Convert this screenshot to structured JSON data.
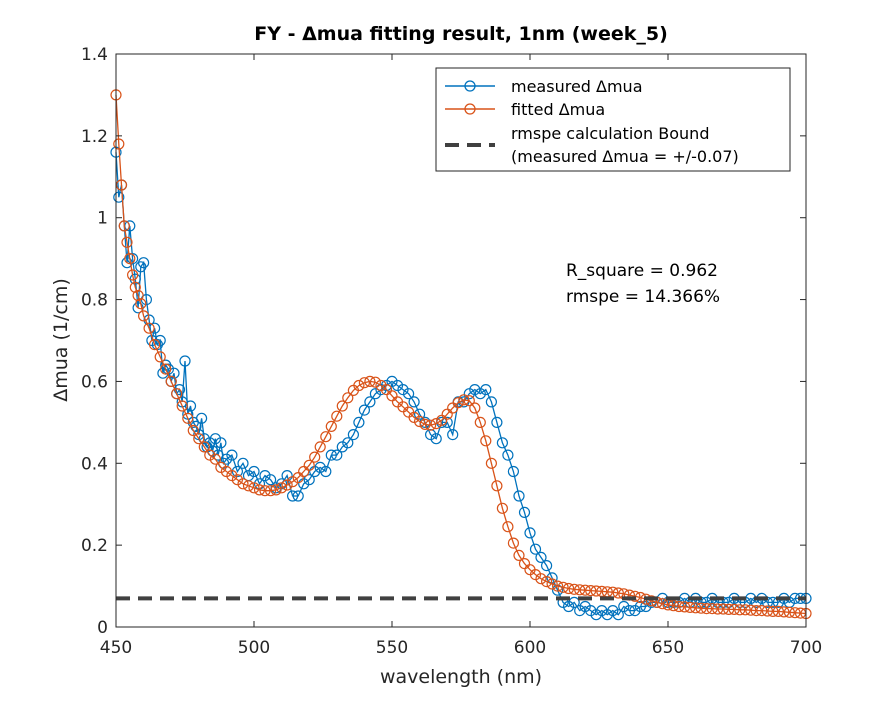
{
  "chart_data": {
    "type": "line",
    "title": "FY - Δmua fitting result, 1nm (week_5)",
    "xlabel": "wavelength (nm)",
    "ylabel": "Δmua (1/cm)",
    "xlim": [
      450,
      700
    ],
    "ylim": [
      0,
      1.4
    ],
    "xticks": [
      450,
      500,
      550,
      600,
      650,
      700
    ],
    "yticks": [
      0,
      0.2,
      0.4,
      0.6,
      0.8,
      1,
      1.2,
      1.4
    ],
    "xtick_labels": [
      "450",
      "500",
      "550",
      "600",
      "650",
      "700"
    ],
    "ytick_labels": [
      "0",
      "0.2",
      "0.4",
      "0.6",
      "0.8",
      "1",
      "1.2",
      "1.4"
    ],
    "grid": false,
    "legend_position": "top-right",
    "series": [
      {
        "name": "measured Δmua",
        "color": "#0072BD",
        "marker": "circle",
        "points": [
          [
            450,
            1.16
          ],
          [
            451,
            1.05
          ],
          [
            452,
            1.08
          ],
          [
            453,
            0.98
          ],
          [
            454,
            0.89
          ],
          [
            455,
            0.98
          ],
          [
            456,
            0.9
          ],
          [
            457,
            0.85
          ],
          [
            458,
            0.78
          ],
          [
            459,
            0.88
          ],
          [
            460,
            0.89
          ],
          [
            461,
            0.8
          ],
          [
            462,
            0.75
          ],
          [
            463,
            0.7
          ],
          [
            464,
            0.73
          ],
          [
            465,
            0.69
          ],
          [
            466,
            0.7
          ],
          [
            467,
            0.62
          ],
          [
            468,
            0.64
          ],
          [
            469,
            0.63
          ],
          [
            470,
            0.6
          ],
          [
            471,
            0.62
          ],
          [
            472,
            0.57
          ],
          [
            473,
            0.58
          ],
          [
            474,
            0.55
          ],
          [
            475,
            0.65
          ],
          [
            476,
            0.52
          ],
          [
            477,
            0.54
          ],
          [
            478,
            0.5
          ],
          [
            479,
            0.49
          ],
          [
            480,
            0.47
          ],
          [
            481,
            0.51
          ],
          [
            482,
            0.46
          ],
          [
            483,
            0.44
          ],
          [
            484,
            0.45
          ],
          [
            485,
            0.43
          ],
          [
            486,
            0.46
          ],
          [
            487,
            0.42
          ],
          [
            488,
            0.45
          ],
          [
            489,
            0.4
          ],
          [
            490,
            0.41
          ],
          [
            492,
            0.42
          ],
          [
            494,
            0.38
          ],
          [
            496,
            0.4
          ],
          [
            498,
            0.37
          ],
          [
            500,
            0.38
          ],
          [
            502,
            0.35
          ],
          [
            504,
            0.37
          ],
          [
            506,
            0.36
          ],
          [
            508,
            0.34
          ],
          [
            510,
            0.35
          ],
          [
            512,
            0.37
          ],
          [
            514,
            0.32
          ],
          [
            516,
            0.32
          ],
          [
            518,
            0.35
          ],
          [
            520,
            0.36
          ],
          [
            522,
            0.38
          ],
          [
            524,
            0.39
          ],
          [
            526,
            0.38
          ],
          [
            528,
            0.42
          ],
          [
            530,
            0.42
          ],
          [
            532,
            0.44
          ],
          [
            534,
            0.45
          ],
          [
            536,
            0.47
          ],
          [
            538,
            0.5
          ],
          [
            540,
            0.53
          ],
          [
            542,
            0.55
          ],
          [
            544,
            0.57
          ],
          [
            546,
            0.58
          ],
          [
            548,
            0.59
          ],
          [
            550,
            0.6
          ],
          [
            552,
            0.59
          ],
          [
            554,
            0.58
          ],
          [
            556,
            0.57
          ],
          [
            558,
            0.55
          ],
          [
            560,
            0.52
          ],
          [
            562,
            0.5
          ],
          [
            564,
            0.47
          ],
          [
            566,
            0.46
          ],
          [
            568,
            0.5
          ],
          [
            570,
            0.5
          ],
          [
            572,
            0.47
          ],
          [
            574,
            0.55
          ],
          [
            576,
            0.55
          ],
          [
            578,
            0.57
          ],
          [
            580,
            0.58
          ],
          [
            582,
            0.57
          ],
          [
            584,
            0.58
          ],
          [
            586,
            0.55
          ],
          [
            588,
            0.5
          ],
          [
            590,
            0.45
          ],
          [
            592,
            0.42
          ],
          [
            594,
            0.38
          ],
          [
            596,
            0.32
          ],
          [
            598,
            0.28
          ],
          [
            600,
            0.23
          ],
          [
            602,
            0.19
          ],
          [
            604,
            0.17
          ],
          [
            606,
            0.15
          ],
          [
            608,
            0.12
          ],
          [
            610,
            0.09
          ],
          [
            612,
            0.06
          ],
          [
            614,
            0.05
          ],
          [
            616,
            0.06
          ],
          [
            618,
            0.04
          ],
          [
            620,
            0.05
          ],
          [
            622,
            0.04
          ],
          [
            624,
            0.03
          ],
          [
            626,
            0.04
          ],
          [
            628,
            0.03
          ],
          [
            630,
            0.04
          ],
          [
            632,
            0.03
          ],
          [
            634,
            0.05
          ],
          [
            636,
            0.04
          ],
          [
            638,
            0.04
          ],
          [
            640,
            0.05
          ],
          [
            642,
            0.05
          ],
          [
            644,
            0.06
          ],
          [
            646,
            0.06
          ],
          [
            648,
            0.07
          ],
          [
            650,
            0.06
          ],
          [
            652,
            0.06
          ],
          [
            654,
            0.06
          ],
          [
            656,
            0.07
          ],
          [
            658,
            0.06
          ],
          [
            660,
            0.07
          ],
          [
            662,
            0.06
          ],
          [
            664,
            0.06
          ],
          [
            666,
            0.07
          ],
          [
            668,
            0.06
          ],
          [
            670,
            0.06
          ],
          [
            672,
            0.06
          ],
          [
            674,
            0.07
          ],
          [
            676,
            0.06
          ],
          [
            678,
            0.06
          ],
          [
            680,
            0.07
          ],
          [
            682,
            0.06
          ],
          [
            684,
            0.07
          ],
          [
            686,
            0.06
          ],
          [
            688,
            0.06
          ],
          [
            690,
            0.06
          ],
          [
            692,
            0.07
          ],
          [
            694,
            0.06
          ],
          [
            696,
            0.07
          ],
          [
            698,
            0.07
          ],
          [
            700,
            0.07
          ]
        ]
      },
      {
        "name": "fitted Δmua",
        "color": "#D95319",
        "marker": "circle",
        "points": [
          [
            450,
            1.3
          ],
          [
            451,
            1.18
          ],
          [
            452,
            1.08
          ],
          [
            453,
            0.98
          ],
          [
            454,
            0.94
          ],
          [
            455,
            0.9
          ],
          [
            456,
            0.86
          ],
          [
            457,
            0.83
          ],
          [
            458,
            0.81
          ],
          [
            459,
            0.79
          ],
          [
            460,
            0.76
          ],
          [
            462,
            0.73
          ],
          [
            464,
            0.69
          ],
          [
            466,
            0.66
          ],
          [
            468,
            0.63
          ],
          [
            470,
            0.6
          ],
          [
            472,
            0.57
          ],
          [
            474,
            0.54
          ],
          [
            476,
            0.51
          ],
          [
            478,
            0.48
          ],
          [
            480,
            0.46
          ],
          [
            482,
            0.44
          ],
          [
            484,
            0.42
          ],
          [
            486,
            0.41
          ],
          [
            488,
            0.39
          ],
          [
            490,
            0.38
          ],
          [
            492,
            0.37
          ],
          [
            494,
            0.36
          ],
          [
            496,
            0.35
          ],
          [
            498,
            0.345
          ],
          [
            500,
            0.34
          ],
          [
            502,
            0.335
          ],
          [
            504,
            0.333
          ],
          [
            506,
            0.333
          ],
          [
            508,
            0.335
          ],
          [
            510,
            0.34
          ],
          [
            512,
            0.347
          ],
          [
            514,
            0.355
          ],
          [
            516,
            0.365
          ],
          [
            518,
            0.38
          ],
          [
            520,
            0.395
          ],
          [
            522,
            0.415
          ],
          [
            524,
            0.44
          ],
          [
            526,
            0.465
          ],
          [
            528,
            0.49
          ],
          [
            530,
            0.515
          ],
          [
            532,
            0.54
          ],
          [
            534,
            0.56
          ],
          [
            536,
            0.578
          ],
          [
            538,
            0.59
          ],
          [
            540,
            0.597
          ],
          [
            542,
            0.6
          ],
          [
            544,
            0.598
          ],
          [
            546,
            0.59
          ],
          [
            548,
            0.58
          ],
          [
            550,
            0.565
          ],
          [
            552,
            0.55
          ],
          [
            554,
            0.538
          ],
          [
            556,
            0.525
          ],
          [
            558,
            0.512
          ],
          [
            560,
            0.502
          ],
          [
            562,
            0.495
          ],
          [
            564,
            0.493
          ],
          [
            566,
            0.497
          ],
          [
            568,
            0.505
          ],
          [
            570,
            0.52
          ],
          [
            572,
            0.535
          ],
          [
            574,
            0.548
          ],
          [
            576,
            0.555
          ],
          [
            578,
            0.553
          ],
          [
            580,
            0.535
          ],
          [
            582,
            0.5
          ],
          [
            584,
            0.455
          ],
          [
            586,
            0.4
          ],
          [
            588,
            0.345
          ],
          [
            590,
            0.29
          ],
          [
            592,
            0.245
          ],
          [
            594,
            0.205
          ],
          [
            596,
            0.175
          ],
          [
            598,
            0.155
          ],
          [
            600,
            0.14
          ],
          [
            602,
            0.128
          ],
          [
            604,
            0.118
          ],
          [
            606,
            0.111
          ],
          [
            608,
            0.105
          ],
          [
            610,
            0.1
          ],
          [
            612,
            0.097
          ],
          [
            614,
            0.094
          ],
          [
            616,
            0.092
          ],
          [
            618,
            0.091
          ],
          [
            620,
            0.09
          ],
          [
            622,
            0.089
          ],
          [
            624,
            0.088
          ],
          [
            626,
            0.087
          ],
          [
            628,
            0.086
          ],
          [
            630,
            0.085
          ],
          [
            632,
            0.083
          ],
          [
            634,
            0.081
          ],
          [
            636,
            0.078
          ],
          [
            638,
            0.075
          ],
          [
            640,
            0.072
          ],
          [
            642,
            0.068
          ],
          [
            644,
            0.064
          ],
          [
            646,
            0.06
          ],
          [
            648,
            0.057
          ],
          [
            650,
            0.054
          ],
          [
            652,
            0.052
          ],
          [
            654,
            0.05
          ],
          [
            656,
            0.049
          ],
          [
            658,
            0.048
          ],
          [
            660,
            0.047
          ],
          [
            662,
            0.046
          ],
          [
            664,
            0.045
          ],
          [
            666,
            0.045
          ],
          [
            668,
            0.044
          ],
          [
            670,
            0.044
          ],
          [
            672,
            0.043
          ],
          [
            674,
            0.043
          ],
          [
            676,
            0.042
          ],
          [
            678,
            0.042
          ],
          [
            680,
            0.041
          ],
          [
            682,
            0.04
          ],
          [
            684,
            0.04
          ],
          [
            686,
            0.039
          ],
          [
            688,
            0.038
          ],
          [
            690,
            0.038
          ],
          [
            692,
            0.037
          ],
          [
            694,
            0.036
          ],
          [
            696,
            0.035
          ],
          [
            698,
            0.034
          ],
          [
            700,
            0.033
          ]
        ]
      },
      {
        "name": "rmspe calculation Bound",
        "name_line2": "(measured Δmua = +/-0.07)",
        "color": "#404040",
        "style": "dashed",
        "points": [
          [
            450,
            0.07
          ],
          [
            700,
            0.07
          ]
        ]
      }
    ],
    "annotations": [
      "R_square = 0.962",
      "rmspe = 14.366%"
    ]
  }
}
